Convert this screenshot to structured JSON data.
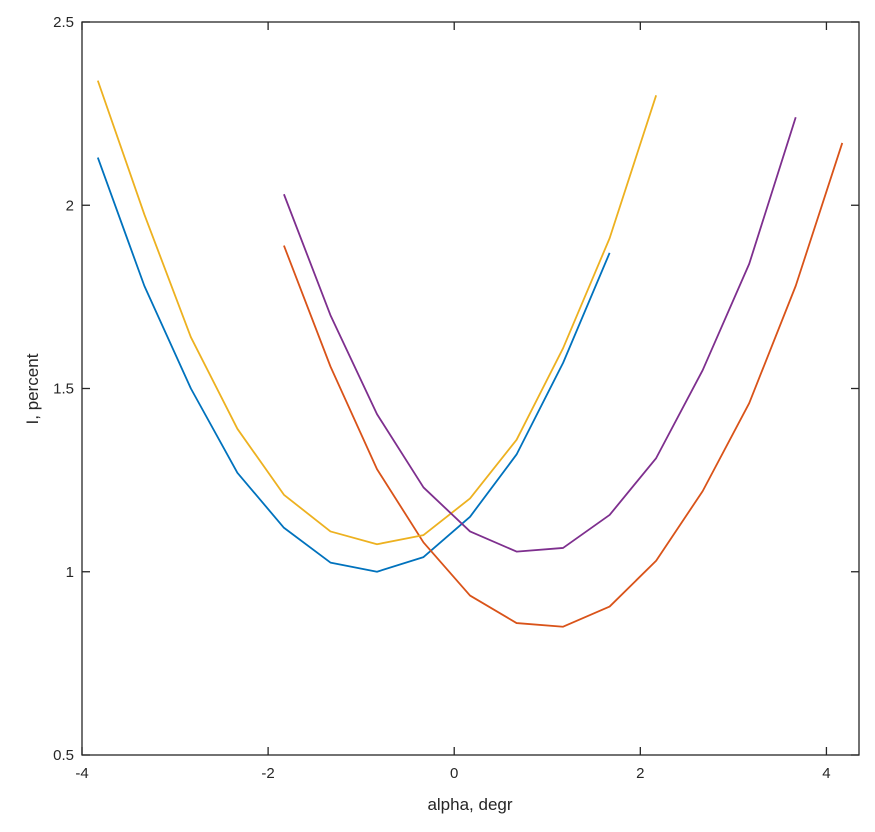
{
  "chart_data": {
    "type": "line",
    "title": "",
    "xlabel": "alpha, degr",
    "ylabel": "I, percent",
    "xlim": [
      -4,
      4.35
    ],
    "ylim": [
      0.5,
      2.5
    ],
    "xticks": [
      -4,
      -2,
      0,
      2,
      4
    ],
    "xtick_labels": [
      "-4",
      "-2",
      "0",
      "2",
      "4"
    ],
    "yticks": [
      0.5,
      1,
      1.5,
      2,
      2.5
    ],
    "ytick_labels": [
      "0.5",
      "1",
      "1.5",
      "2",
      "2.5"
    ],
    "grid": false,
    "legend": "none",
    "series": [
      {
        "color": "#0072BD",
        "x": [
          -3.83,
          -3.33,
          -2.83,
          -2.33,
          -1.83,
          -1.33,
          -0.83,
          -0.33,
          0.17,
          0.67,
          1.17,
          1.67
        ],
        "y": [
          2.13,
          1.78,
          1.5,
          1.27,
          1.12,
          1.025,
          1.0,
          1.04,
          1.15,
          1.32,
          1.57,
          1.87
        ]
      },
      {
        "color": "#D95319",
        "x": [
          -1.83,
          -1.33,
          -0.83,
          -0.33,
          0.17,
          0.67,
          1.17,
          1.67,
          2.17,
          2.67,
          3.17,
          3.67,
          4.17
        ],
        "y": [
          1.89,
          1.56,
          1.28,
          1.08,
          0.935,
          0.86,
          0.85,
          0.905,
          1.03,
          1.22,
          1.46,
          1.78,
          2.17
        ]
      },
      {
        "color": "#EDB120",
        "x": [
          -3.83,
          -3.33,
          -2.83,
          -2.33,
          -1.83,
          -1.33,
          -0.83,
          -0.33,
          0.17,
          0.67,
          1.17,
          1.67,
          2.17
        ],
        "y": [
          2.34,
          1.975,
          1.64,
          1.39,
          1.21,
          1.11,
          1.075,
          1.1,
          1.2,
          1.36,
          1.61,
          1.91,
          2.3
        ]
      },
      {
        "color": "#7E2F8E",
        "x": [
          -1.83,
          -1.33,
          -0.83,
          -0.33,
          0.17,
          0.67,
          1.17,
          1.67,
          2.17,
          2.67,
          3.17,
          3.67
        ],
        "y": [
          2.03,
          1.7,
          1.43,
          1.23,
          1.11,
          1.055,
          1.065,
          1.155,
          1.31,
          1.55,
          1.84,
          2.24
        ]
      }
    ]
  }
}
